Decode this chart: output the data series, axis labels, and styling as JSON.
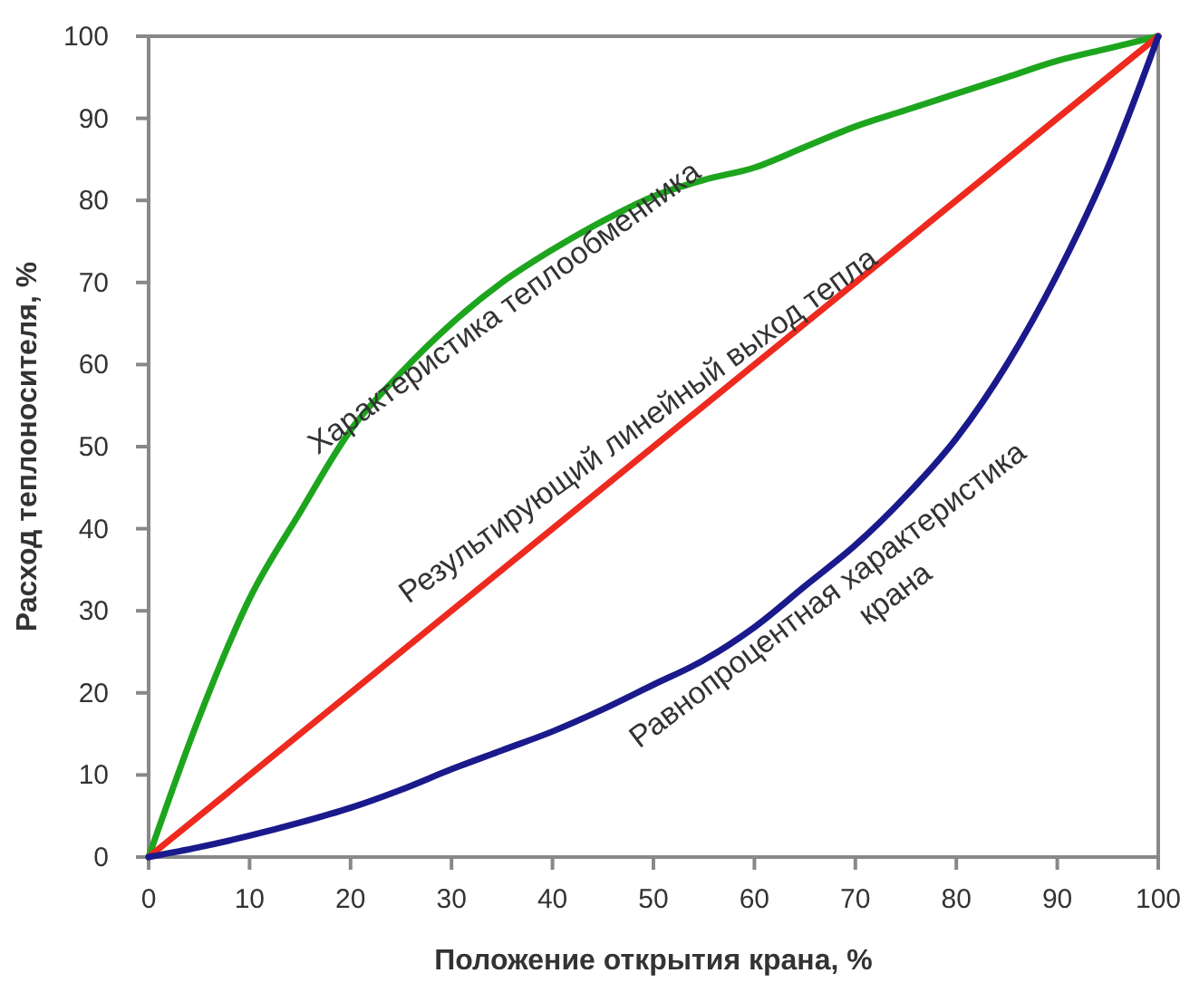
{
  "chart_data": {
    "type": "line",
    "xlabel": "Положение открытия крана, %",
    "ylabel": "Расход теплоносителя, %",
    "xlim": [
      0,
      100
    ],
    "ylim": [
      0,
      100
    ],
    "xticks": [
      0,
      10,
      20,
      30,
      40,
      50,
      60,
      70,
      80,
      90,
      100
    ],
    "yticks": [
      0,
      10,
      20,
      30,
      40,
      50,
      60,
      70,
      80,
      90,
      100
    ],
    "line_style": "solid",
    "x": [
      0,
      5,
      10,
      15,
      20,
      25,
      30,
      35,
      40,
      45,
      50,
      55,
      60,
      65,
      70,
      75,
      80,
      85,
      90,
      95,
      100
    ],
    "series": [
      {
        "name": "Характеристика теплообменника",
        "color": "#1ea51e",
        "values": [
          0,
          17,
          31.5,
          42,
          52,
          59,
          65,
          70,
          74,
          77.5,
          80.5,
          82.5,
          84,
          86.5,
          89,
          91,
          93,
          95,
          97,
          98.5,
          100
        ]
      },
      {
        "name": "Результирующий линейный выход тепла",
        "color": "#ee2a1f",
        "x": [
          0,
          100
        ],
        "values": [
          0,
          100
        ]
      },
      {
        "name": "Равнопроцентная характеристика\nкрана",
        "color": "#1a1a8c",
        "values": [
          0,
          1.2,
          2.6,
          4.2,
          6,
          8.2,
          10.7,
          13,
          15.3,
          18,
          21,
          24,
          28,
          33,
          38,
          44,
          51,
          60,
          71,
          84,
          100
        ]
      }
    ]
  }
}
